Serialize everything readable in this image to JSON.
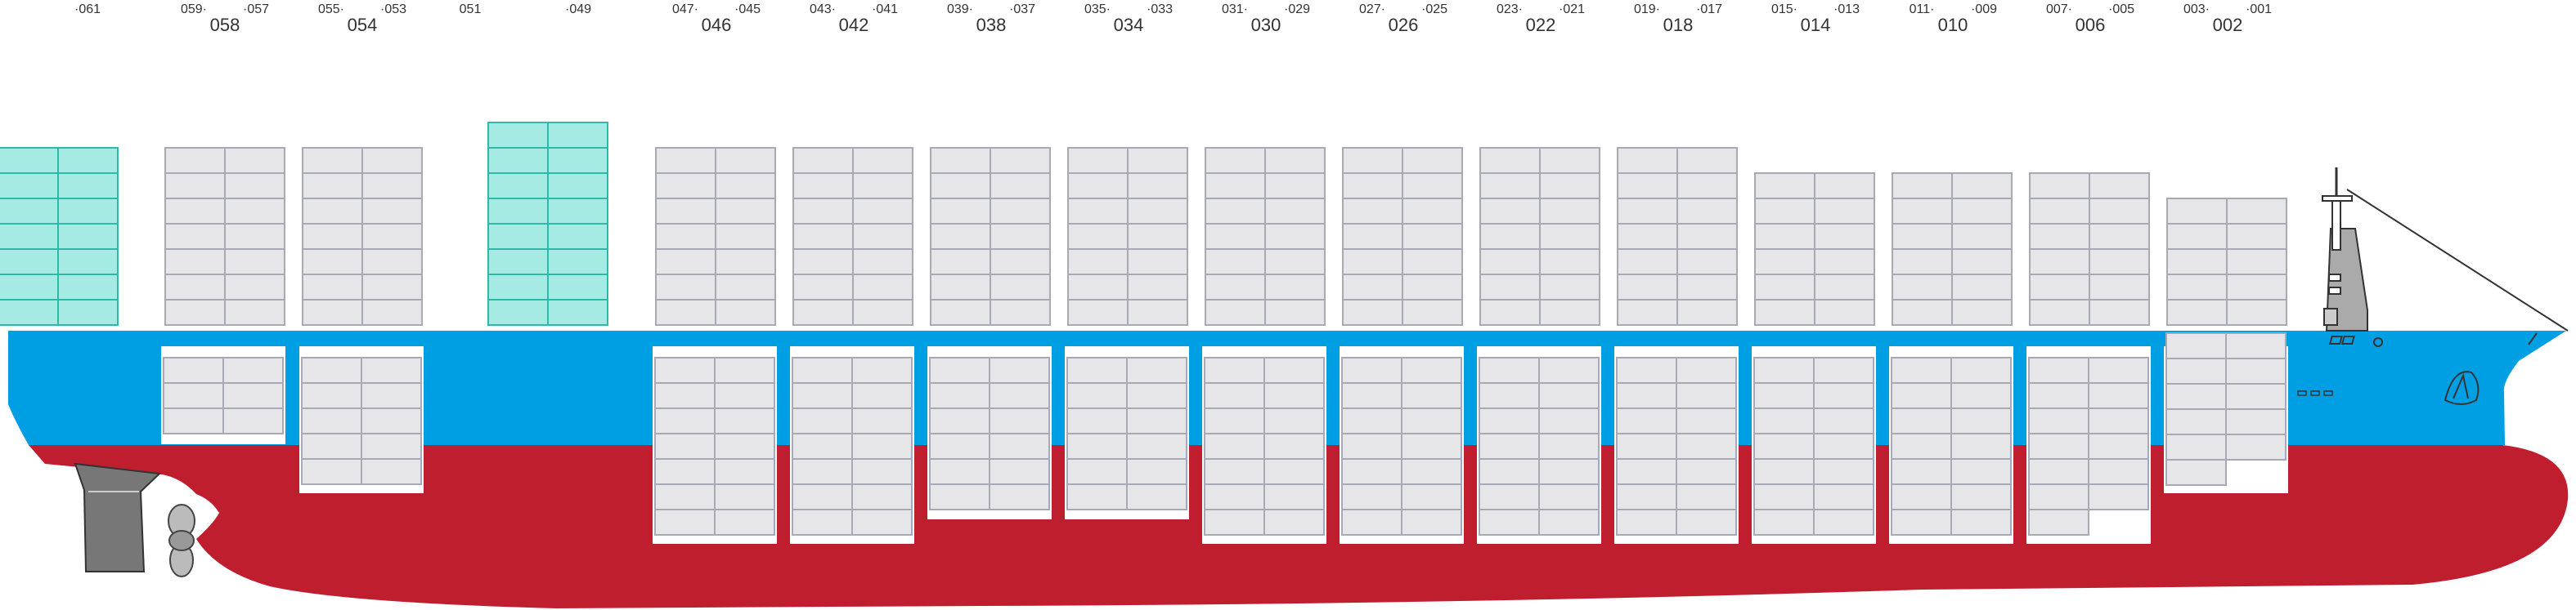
{
  "diagram": {
    "colors": {
      "hull_blue": "#009fe3",
      "hull_red": "#be1e2d",
      "container_fill": "#e6e6e8",
      "container_line": "#a7a9b4",
      "reefer_fill": "#a6ebe3",
      "reefer_line": "#2fb9a9",
      "hold_white": "#ffffff",
      "dark_gray": "#777777"
    },
    "bay_labels": [
      {
        "id": "l061",
        "text": "·061",
        "kind": "small"
      },
      {
        "id": "l059",
        "text": "059·",
        "kind": "small"
      },
      {
        "id": "l058",
        "text": "058",
        "kind": "big"
      },
      {
        "id": "l057",
        "text": "·057",
        "kind": "small"
      },
      {
        "id": "l055",
        "text": "055·",
        "kind": "small"
      },
      {
        "id": "l054",
        "text": "054",
        "kind": "big"
      },
      {
        "id": "l053",
        "text": "·053",
        "kind": "small"
      },
      {
        "id": "l051",
        "text": "051",
        "kind": "small"
      },
      {
        "id": "l049",
        "text": "·049",
        "kind": "small"
      },
      {
        "id": "l047",
        "text": "047·",
        "kind": "small"
      },
      {
        "id": "l046",
        "text": "046",
        "kind": "big"
      },
      {
        "id": "l045",
        "text": "·045",
        "kind": "small"
      },
      {
        "id": "l043",
        "text": "043·",
        "kind": "small"
      },
      {
        "id": "l042",
        "text": "042",
        "kind": "big"
      },
      {
        "id": "l041",
        "text": "·041",
        "kind": "small"
      },
      {
        "id": "l039",
        "text": "039·",
        "kind": "small"
      },
      {
        "id": "l038",
        "text": "038",
        "kind": "big"
      },
      {
        "id": "l037",
        "text": "·037",
        "kind": "small"
      },
      {
        "id": "l035",
        "text": "035·",
        "kind": "small"
      },
      {
        "id": "l034",
        "text": "034",
        "kind": "big"
      },
      {
        "id": "l033",
        "text": "·033",
        "kind": "small"
      },
      {
        "id": "l031",
        "text": "031·",
        "kind": "small"
      },
      {
        "id": "l030",
        "text": "030",
        "kind": "big"
      },
      {
        "id": "l029",
        "text": "·029",
        "kind": "small"
      },
      {
        "id": "l027",
        "text": "027·",
        "kind": "small"
      },
      {
        "id": "l026",
        "text": "026",
        "kind": "big"
      },
      {
        "id": "l025",
        "text": "·025",
        "kind": "small"
      },
      {
        "id": "l023",
        "text": "023·",
        "kind": "small"
      },
      {
        "id": "l022",
        "text": "022",
        "kind": "big"
      },
      {
        "id": "l021",
        "text": "·021",
        "kind": "small"
      },
      {
        "id": "l019",
        "text": "019·",
        "kind": "small"
      },
      {
        "id": "l018",
        "text": "018",
        "kind": "big"
      },
      {
        "id": "l017",
        "text": "·017",
        "kind": "small"
      },
      {
        "id": "l015",
        "text": "015·",
        "kind": "small"
      },
      {
        "id": "l014",
        "text": "014",
        "kind": "big"
      },
      {
        "id": "l013",
        "text": "·013",
        "kind": "small"
      },
      {
        "id": "l011",
        "text": "011·",
        "kind": "small"
      },
      {
        "id": "l010",
        "text": "010",
        "kind": "big"
      },
      {
        "id": "l009",
        "text": "·009",
        "kind": "small"
      },
      {
        "id": "l007",
        "text": "007·",
        "kind": "small"
      },
      {
        "id": "l006",
        "text": "006",
        "kind": "big"
      },
      {
        "id": "l005",
        "text": "·005",
        "kind": "small"
      },
      {
        "id": "l003",
        "text": "003·",
        "kind": "small"
      },
      {
        "id": "l002",
        "text": "002",
        "kind": "big"
      },
      {
        "id": "l001",
        "text": "·001",
        "kind": "small"
      }
    ],
    "deck_stacks": [
      {
        "bay": "061",
        "tiers": 7,
        "reefer": true
      },
      {
        "bay": "058",
        "tiers": 7,
        "reefer": false
      },
      {
        "bay": "054",
        "tiers": 7,
        "reefer": false
      },
      {
        "bay": "049",
        "tiers": 8,
        "reefer": true
      },
      {
        "bay": "046",
        "tiers": 7,
        "reefer": false
      },
      {
        "bay": "042",
        "tiers": 7,
        "reefer": false
      },
      {
        "bay": "038",
        "tiers": 7,
        "reefer": false
      },
      {
        "bay": "034",
        "tiers": 7,
        "reefer": false
      },
      {
        "bay": "030",
        "tiers": 7,
        "reefer": false
      },
      {
        "bay": "026",
        "tiers": 7,
        "reefer": false
      },
      {
        "bay": "022",
        "tiers": 7,
        "reefer": false
      },
      {
        "bay": "018",
        "tiers": 7,
        "reefer": false
      },
      {
        "bay": "014",
        "tiers": 6,
        "reefer": false
      },
      {
        "bay": "010",
        "tiers": 6,
        "reefer": false
      },
      {
        "bay": "006",
        "tiers": 6,
        "reefer": false
      },
      {
        "bay": "002",
        "tiers": 5,
        "reefer": false
      }
    ],
    "hold_stacks": [
      {
        "bay": "058",
        "tiers": 3
      },
      {
        "bay": "054",
        "tiers": 5
      },
      {
        "bay": "046",
        "tiers": 7
      },
      {
        "bay": "042",
        "tiers": 7
      },
      {
        "bay": "038",
        "tiers": 6
      },
      {
        "bay": "034",
        "tiers": 6
      },
      {
        "bay": "030",
        "tiers": 7
      },
      {
        "bay": "026",
        "tiers": 7
      },
      {
        "bay": "022",
        "tiers": 7
      },
      {
        "bay": "018",
        "tiers": 7
      },
      {
        "bay": "014",
        "tiers": 7
      },
      {
        "bay": "010",
        "tiers": 7
      },
      {
        "bay": "006",
        "tiers": 7
      },
      {
        "bay": "002",
        "tiers": 6
      }
    ]
  }
}
